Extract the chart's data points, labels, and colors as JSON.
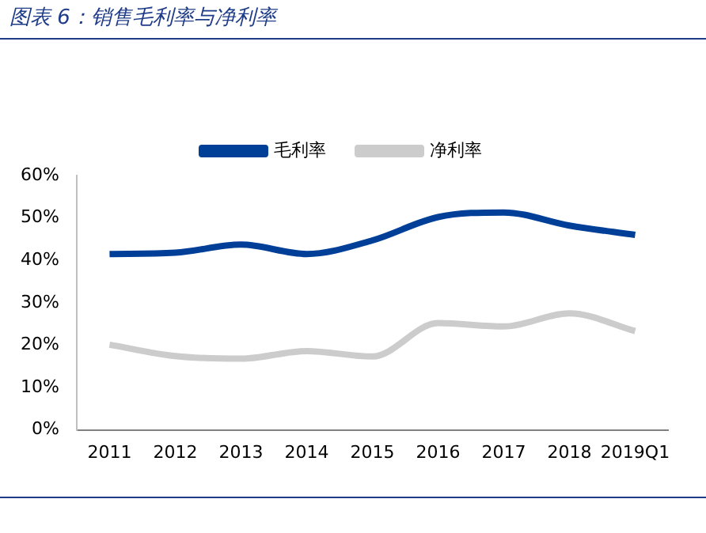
{
  "chart_data": {
    "type": "line",
    "title": "图表 6：销售毛利率与净利率",
    "categories": [
      "2011",
      "2012",
      "2013",
      "2014",
      "2015",
      "2016",
      "2017",
      "2018",
      "2019Q1"
    ],
    "series": [
      {
        "name": "毛利率",
        "color": "#003f98",
        "values": [
          41.5,
          41.8,
          43.7,
          41.5,
          44.7,
          50.2,
          51.3,
          48.2,
          46.0
        ]
      },
      {
        "name": "净利率",
        "color": "#cccccc",
        "values": [
          20.1,
          17.4,
          16.8,
          18.6,
          17.3,
          25.2,
          24.4,
          27.5,
          23.3
        ]
      }
    ],
    "ylim": [
      0,
      60
    ],
    "yticks": [
      {
        "value": 0,
        "label": "0%"
      },
      {
        "value": 10,
        "label": "10%"
      },
      {
        "value": 20,
        "label": "20%"
      },
      {
        "value": 30,
        "label": "30%"
      },
      {
        "value": 40,
        "label": "40%"
      },
      {
        "value": 50,
        "label": "50%"
      },
      {
        "value": 60,
        "label": "60%"
      }
    ],
    "grid": false,
    "legend": "top",
    "marker": "none",
    "line_style": "solid"
  }
}
